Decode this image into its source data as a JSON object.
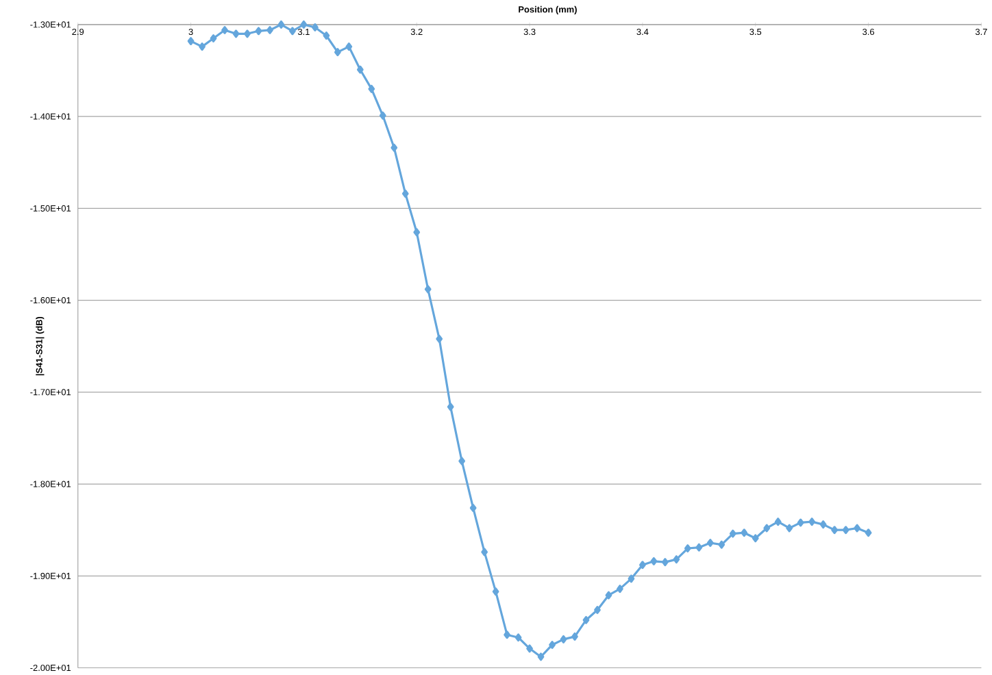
{
  "chart_data": {
    "type": "line",
    "xlabel": "Position (mm)",
    "ylabel": "|S41-S31| (dB)",
    "x": [
      3.0,
      3.01,
      3.02,
      3.03,
      3.04,
      3.05,
      3.06,
      3.07,
      3.08,
      3.09,
      3.1,
      3.11,
      3.12,
      3.13,
      3.14,
      3.15,
      3.16,
      3.17,
      3.18,
      3.19,
      3.2,
      3.21,
      3.22,
      3.23,
      3.24,
      3.25,
      3.26,
      3.27,
      3.28,
      3.29,
      3.3,
      3.31,
      3.32,
      3.33,
      3.34,
      3.35,
      3.36,
      3.37,
      3.38,
      3.39,
      3.4,
      3.41,
      3.42,
      3.43,
      3.44,
      3.45,
      3.46,
      3.47,
      3.48,
      3.49,
      3.5,
      3.51,
      3.52,
      3.53,
      3.54,
      3.55,
      3.56,
      3.57,
      3.58,
      3.59,
      3.6
    ],
    "series": [
      {
        "color": "#64a6dc",
        "values": [
          -13.18,
          -13.24,
          -13.15,
          -13.06,
          -13.1,
          -13.1,
          -13.07,
          -13.06,
          -13.0,
          -13.07,
          -13.0,
          -13.03,
          -13.12,
          -13.3,
          -13.24,
          -13.49,
          -13.7,
          -13.99,
          -14.34,
          -14.84,
          -15.26,
          -15.88,
          -16.42,
          -17.16,
          -17.75,
          -18.26,
          -18.74,
          -19.17,
          -19.64,
          -19.67,
          -19.79,
          -19.88,
          -19.75,
          -19.69,
          -19.66,
          -19.48,
          -19.37,
          -19.21,
          -19.14,
          -19.03,
          -18.88,
          -18.84,
          -18.85,
          -18.82,
          -18.7,
          -18.69,
          -18.64,
          -18.66,
          -18.54,
          -18.53,
          -18.59,
          -18.48,
          -18.41,
          -18.48,
          -18.42,
          -18.41,
          -18.44,
          -18.5,
          -18.5,
          -18.48,
          -18.53
        ]
      }
    ],
    "xlim": [
      2.9,
      3.7
    ],
    "xticks": [
      2.9,
      {
        "value": 3.0,
        "label": "3"
      },
      3.1,
      3.2,
      3.3,
      3.4,
      3.5,
      3.6,
      3.7
    ],
    "ylim": [
      -20,
      -13
    ],
    "yticks": [
      {
        "value": -20,
        "label": "-2.00E+01"
      },
      {
        "value": -19,
        "label": "-1.90E+01"
      },
      {
        "value": -18,
        "label": "-1.80E+01"
      },
      {
        "value": -17,
        "label": "-1.70E+01"
      },
      {
        "value": -16,
        "label": "-1.60E+01"
      },
      {
        "value": -15,
        "label": "-1.50E+01"
      },
      {
        "value": -14,
        "label": "-1.40E+01"
      },
      {
        "value": -13,
        "label": "-1.30E+01"
      }
    ],
    "grid": "y",
    "marker": "diamond",
    "line_style": "solid"
  }
}
